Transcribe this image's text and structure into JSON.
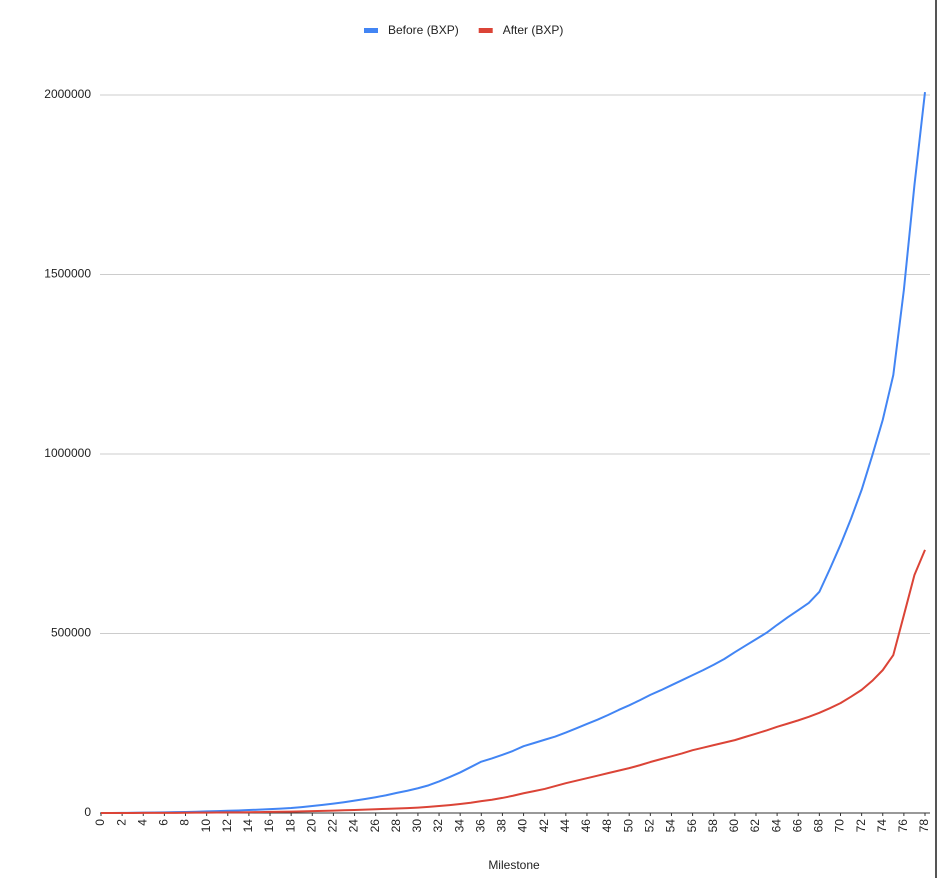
{
  "chart_data": {
    "type": "line",
    "x_label": "Milestone",
    "x": [
      0,
      1,
      2,
      3,
      4,
      5,
      6,
      7,
      8,
      9,
      10,
      11,
      12,
      13,
      14,
      15,
      16,
      17,
      18,
      19,
      20,
      21,
      22,
      23,
      24,
      25,
      26,
      27,
      28,
      29,
      30,
      31,
      32,
      33,
      34,
      35,
      36,
      37,
      38,
      39,
      40,
      41,
      42,
      43,
      44,
      45,
      46,
      47,
      48,
      49,
      50,
      51,
      52,
      53,
      54,
      55,
      56,
      57,
      58,
      59,
      60,
      61,
      62,
      63,
      64,
      65,
      66,
      67,
      68,
      69,
      70,
      71,
      72,
      73,
      74,
      75,
      76,
      77,
      78
    ],
    "xlim": [
      0,
      78
    ],
    "xticks": [
      0,
      2,
      4,
      6,
      8,
      10,
      12,
      14,
      16,
      18,
      20,
      22,
      24,
      26,
      28,
      30,
      32,
      34,
      36,
      38,
      40,
      42,
      44,
      46,
      48,
      50,
      52,
      54,
      56,
      58,
      60,
      62,
      64,
      66,
      68,
      70,
      72,
      74,
      76,
      78
    ],
    "ylim": [
      0,
      2000000
    ],
    "yticks": [
      0,
      500000,
      1000000,
      1500000,
      2000000
    ],
    "grid": true,
    "legend": "top",
    "series": [
      {
        "name": "Before (BXP)",
        "color": "#4285f4",
        "values": [
          0,
          100,
          300,
          600,
          900,
          1300,
          1800,
          2300,
          2900,
          3600,
          4400,
          5200,
          6100,
          7100,
          8200,
          9400,
          10700,
          12200,
          14000,
          16500,
          19500,
          22500,
          26000,
          30000,
          34500,
          39000,
          44000,
          49500,
          56000,
          62000,
          69000,
          77000,
          88000,
          100000,
          113000,
          128000,
          143000,
          152000,
          162000,
          173000,
          186000,
          195000,
          204000,
          213000,
          224000,
          236000,
          248000,
          260000,
          273000,
          287000,
          300000,
          314000,
          329000,
          342000,
          356000,
          370000,
          384000,
          398000,
          413000,
          429000,
          448000,
          466000,
          484000,
          502000,
          524000,
          545000,
          565000,
          585000,
          616000,
          680000,
          747000,
          820000,
          900000,
          995000,
          1095000,
          1220000,
          1457000,
          1749000,
          2008000
        ]
      },
      {
        "name": "After (BXP)",
        "color": "#db4437",
        "values": [
          0,
          0,
          50,
          100,
          200,
          300,
          400,
          500,
          700,
          900,
          1100,
          1300,
          1600,
          1900,
          2200,
          2600,
          3000,
          3500,
          4000,
          4600,
          5200,
          5900,
          6700,
          7600,
          8500,
          9500,
          10500,
          11500,
          12500,
          13500,
          15000,
          17000,
          19500,
          22000,
          25000,
          28500,
          33000,
          37000,
          42000,
          48000,
          55000,
          61000,
          67000,
          75000,
          83000,
          90000,
          97000,
          104000,
          111000,
          118000,
          125000,
          133000,
          142000,
          150000,
          158000,
          166000,
          175000,
          182000,
          189000,
          196000,
          203000,
          212000,
          221000,
          230000,
          240000,
          249000,
          258000,
          268000,
          279000,
          292000,
          306000,
          324000,
          343000,
          368000,
          398000,
          440000,
          551000,
          663000,
          733000
        ]
      }
    ]
  }
}
